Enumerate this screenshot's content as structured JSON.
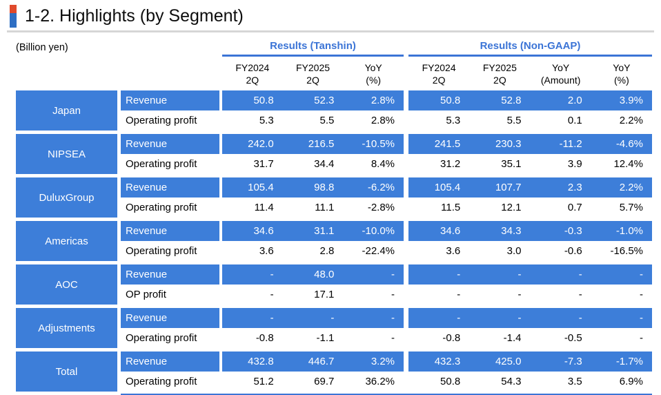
{
  "title": "1-2. Highlights (by Segment)",
  "unit_label": "(Billion yen)",
  "colors": {
    "table_blue": "#3D7ED9",
    "header_text_blue": "#3B74D6",
    "marker_red": "#E04A2C",
    "marker_blue": "#2E6FC4",
    "divider_gray": "#D6D6D6"
  },
  "table": {
    "groups_header": [
      {
        "label": "Results (Tanshin)"
      },
      {
        "label": "Results (Non-GAAP)"
      }
    ],
    "columns_tanshin": [
      {
        "line1": "FY2024",
        "line2": "2Q"
      },
      {
        "line1": "FY2025",
        "line2": "2Q"
      },
      {
        "line1": "YoY",
        "line2": "(%)"
      }
    ],
    "columns_nongaap": [
      {
        "line1": "FY2024",
        "line2": "2Q"
      },
      {
        "line1": "FY2025",
        "line2": "2Q"
      },
      {
        "line1": "YoY",
        "line2": "(Amount)"
      },
      {
        "line1": "YoY",
        "line2": "(%)"
      }
    ],
    "segments": [
      {
        "name": "Japan",
        "rows": [
          {
            "label": "Revenue",
            "tanshin": [
              "50.8",
              "52.3",
              "2.8%"
            ],
            "nongaap": [
              "50.8",
              "52.8",
              "2.0",
              "3.9%"
            ]
          },
          {
            "label": "Operating profit",
            "tanshin": [
              "5.3",
              "5.5",
              "2.8%"
            ],
            "nongaap": [
              "5.3",
              "5.5",
              "0.1",
              "2.2%"
            ]
          }
        ]
      },
      {
        "name": "NIPSEA",
        "rows": [
          {
            "label": "Revenue",
            "tanshin": [
              "242.0",
              "216.5",
              "-10.5%"
            ],
            "nongaap": [
              "241.5",
              "230.3",
              "-11.2",
              "-4.6%"
            ]
          },
          {
            "label": "Operating profit",
            "tanshin": [
              "31.7",
              "34.4",
              "8.4%"
            ],
            "nongaap": [
              "31.2",
              "35.1",
              "3.9",
              "12.4%"
            ]
          }
        ]
      },
      {
        "name": "DuluxGroup",
        "rows": [
          {
            "label": "Revenue",
            "tanshin": [
              "105.4",
              "98.8",
              "-6.2%"
            ],
            "nongaap": [
              "105.4",
              "107.7",
              "2.3",
              "2.2%"
            ]
          },
          {
            "label": "Operating profit",
            "tanshin": [
              "11.4",
              "11.1",
              "-2.8%"
            ],
            "nongaap": [
              "11.5",
              "12.1",
              "0.7",
              "5.7%"
            ]
          }
        ]
      },
      {
        "name": "Americas",
        "rows": [
          {
            "label": "Revenue",
            "tanshin": [
              "34.6",
              "31.1",
              "-10.0%"
            ],
            "nongaap": [
              "34.6",
              "34.3",
              "-0.3",
              "-1.0%"
            ]
          },
          {
            "label": "Operating profit",
            "tanshin": [
              "3.6",
              "2.8",
              "-22.4%"
            ],
            "nongaap": [
              "3.6",
              "3.0",
              "-0.6",
              "-16.5%"
            ]
          }
        ]
      },
      {
        "name": "AOC",
        "rows": [
          {
            "label": "Revenue",
            "tanshin": [
              "-",
              "48.0",
              "-"
            ],
            "nongaap": [
              "-",
              "-",
              "-",
              "-"
            ]
          },
          {
            "label": "OP profit",
            "tanshin": [
              "-",
              "17.1",
              "-"
            ],
            "nongaap": [
              "-",
              "-",
              "-",
              "-"
            ]
          }
        ]
      },
      {
        "name": "Adjustments",
        "rows": [
          {
            "label": "Revenue",
            "tanshin": [
              "-",
              "-",
              "-"
            ],
            "nongaap": [
              "-",
              "-",
              "-",
              "-"
            ]
          },
          {
            "label": "Operating profit",
            "tanshin": [
              "-0.8",
              "-1.1",
              "-"
            ],
            "nongaap": [
              "-0.8",
              "-1.4",
              "-0.5",
              "-"
            ]
          }
        ]
      },
      {
        "name": "Total",
        "rows": [
          {
            "label": "Revenue",
            "tanshin": [
              "432.8",
              "446.7",
              "3.2%"
            ],
            "nongaap": [
              "432.3",
              "425.0",
              "-7.3",
              "-1.7%"
            ]
          },
          {
            "label": "Operating profit",
            "tanshin": [
              "51.2",
              "69.7",
              "36.2%"
            ],
            "nongaap": [
              "50.8",
              "54.3",
              "3.5",
              "6.9%"
            ]
          }
        ]
      }
    ]
  }
}
